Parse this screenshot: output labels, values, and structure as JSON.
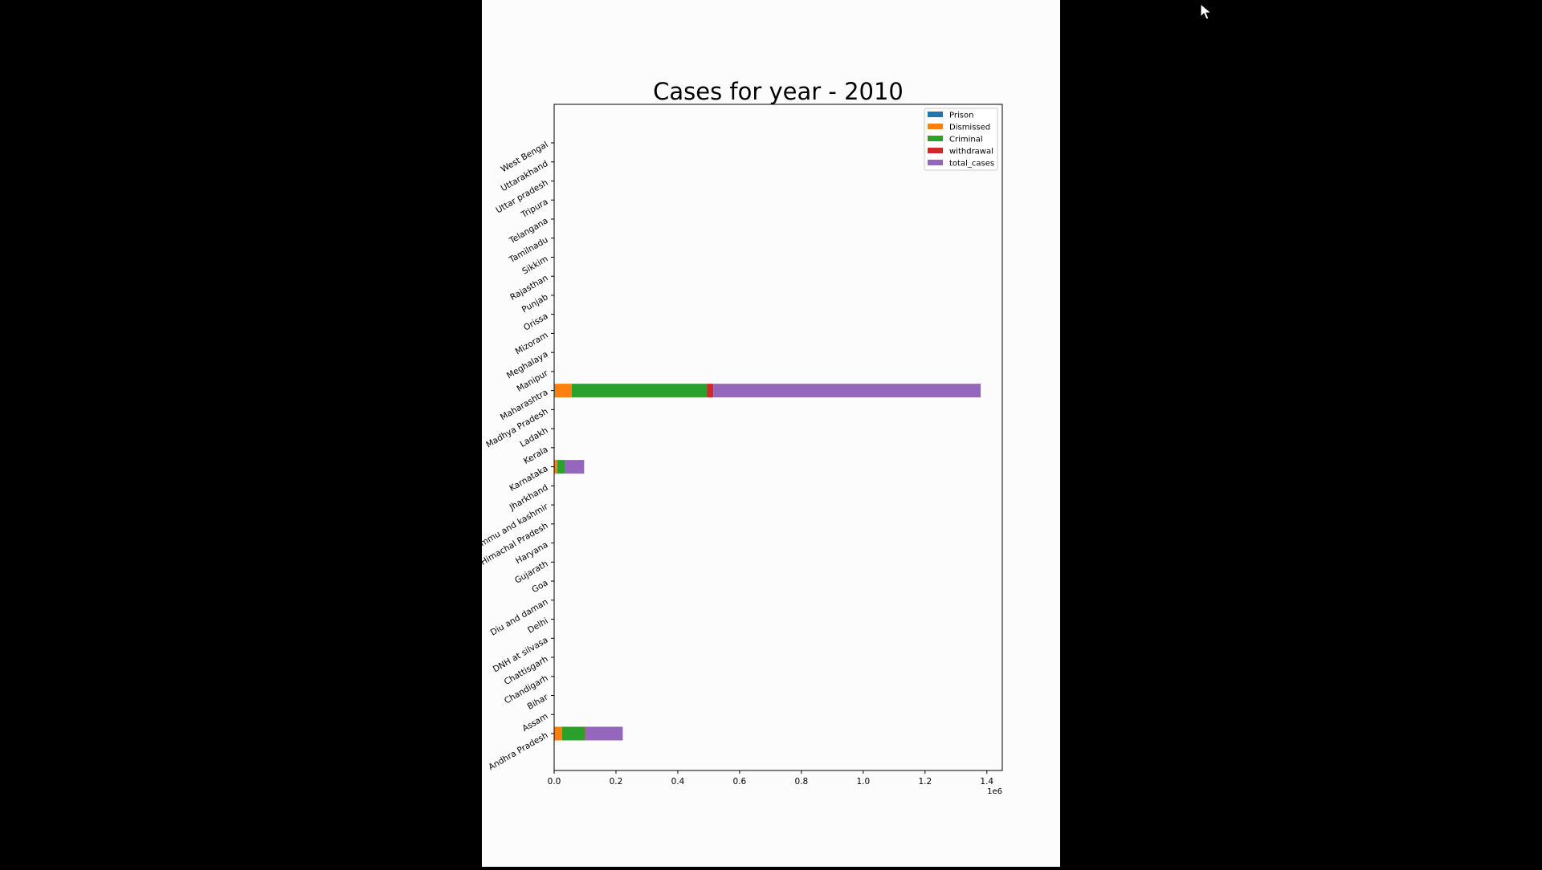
{
  "figure_background": "#fcfcfc",
  "screen_background": "#000000",
  "chart_data": {
    "type": "bar",
    "orientation": "horizontal",
    "stacked": true,
    "title": "Cases for year - 2010",
    "xlabel": "",
    "ylabel": "",
    "x_offset_label": "1e6",
    "xlim": [
      0,
      1450000
    ],
    "xticks": [
      0,
      200000,
      400000,
      600000,
      800000,
      1000000,
      1200000,
      1400000
    ],
    "xtick_labels": [
      "0.0",
      "0.2",
      "0.4",
      "0.6",
      "0.8",
      "1.0",
      "1.2",
      "1.4"
    ],
    "grid": false,
    "legend_position": "top-right",
    "categories": [
      "Andhra Pradesh",
      "Assam",
      "Bihar",
      "Chandigarh",
      "Chattisgarh",
      "DNH at silvasa",
      "Delhi",
      "Diu and daman",
      "Goa",
      "Gujarath",
      "Haryana",
      "Himachal Pradesh",
      "Jammu and kashmir",
      "Jharkhand",
      "Karnataka",
      "Kerala",
      "Ladakh",
      "Madhya Pradesh",
      "Maharashtra",
      "Manipur",
      "Meghalaya",
      "Mizoram",
      "Orissa",
      "Punjab",
      "Rajasthan",
      "Sikkim",
      "Tamilnadu",
      "Telangana",
      "Tripura",
      "Uttar pradesh",
      "Uttarakhand",
      "West Bengal"
    ],
    "series": [
      {
        "name": "Prison",
        "color": "#1f77b4",
        "values": [
          1000,
          0,
          0,
          0,
          0,
          0,
          0,
          0,
          0,
          0,
          0,
          0,
          0,
          0,
          500,
          0,
          0,
          0,
          2000,
          0,
          0,
          0,
          0,
          0,
          0,
          0,
          0,
          0,
          0,
          0,
          0,
          0
        ]
      },
      {
        "name": "Dismissed",
        "color": "#ff7f0e",
        "values": [
          25000,
          0,
          0,
          0,
          0,
          0,
          0,
          0,
          0,
          0,
          0,
          0,
          0,
          0,
          10000,
          0,
          0,
          0,
          55000,
          0,
          0,
          0,
          0,
          0,
          0,
          0,
          0,
          0,
          0,
          0,
          0,
          0
        ]
      },
      {
        "name": "Criminal",
        "color": "#2ca02c",
        "values": [
          74000,
          0,
          0,
          0,
          0,
          0,
          0,
          0,
          0,
          0,
          0,
          0,
          0,
          0,
          25000,
          0,
          0,
          0,
          438000,
          0,
          0,
          0,
          0,
          0,
          0,
          0,
          0,
          0,
          0,
          0,
          0,
          0
        ]
      },
      {
        "name": "withdrawal",
        "color": "#d62728",
        "values": [
          1000,
          0,
          0,
          0,
          0,
          0,
          0,
          0,
          0,
          0,
          0,
          0,
          0,
          0,
          500,
          0,
          0,
          0,
          20000,
          0,
          0,
          0,
          0,
          0,
          0,
          0,
          0,
          0,
          0,
          0,
          0,
          0
        ]
      },
      {
        "name": "total_cases",
        "color": "#9467bd",
        "values": [
          121000,
          0,
          0,
          0,
          0,
          0,
          0,
          0,
          0,
          0,
          0,
          0,
          0,
          0,
          61000,
          0,
          0,
          0,
          865000,
          0,
          0,
          0,
          0,
          0,
          0,
          0,
          0,
          0,
          0,
          0,
          0,
          0
        ]
      }
    ]
  },
  "cursor": {
    "icon": "mouse-pointer-icon"
  }
}
